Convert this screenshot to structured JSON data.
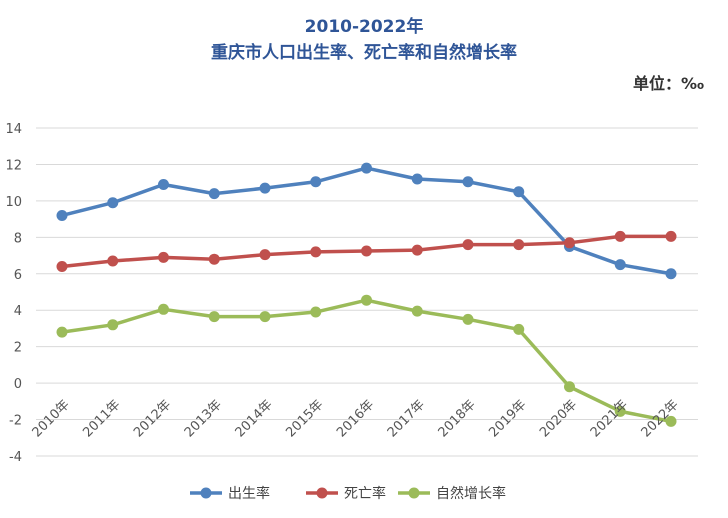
{
  "header": {
    "title_line1": "2010-2022年",
    "title_line2": "重庆市人口出生率、死亡率和自然增长率",
    "unit": "单位：‰"
  },
  "chart_data": {
    "type": "line",
    "title": "2010-2022年 重庆市人口出生率、死亡率和自然增长率",
    "xlabel": "",
    "ylabel": "",
    "unit": "单位：‰",
    "ylim": [
      -4,
      14
    ],
    "yticks": [
      14,
      12,
      10,
      8,
      6,
      4,
      2,
      0,
      -2,
      -4
    ],
    "grid": true,
    "legend_position": "bottom",
    "categories": [
      "2010年",
      "2011年",
      "2012年",
      "2013年",
      "2014年",
      "2015年",
      "2016年",
      "2017年",
      "2018年",
      "2019年",
      "2020年",
      "2021年",
      "2022年"
    ],
    "series": [
      {
        "name": "出生率",
        "color": "#4f81bd",
        "values": [
          9.2,
          9.9,
          10.9,
          10.4,
          10.7,
          11.05,
          11.8,
          11.2,
          11.05,
          10.5,
          7.5,
          6.5,
          6.0
        ]
      },
      {
        "name": "死亡率",
        "color": "#c0504d",
        "values": [
          6.4,
          6.7,
          6.9,
          6.8,
          7.05,
          7.2,
          7.25,
          7.3,
          7.6,
          7.6,
          7.7,
          8.05,
          8.05
        ]
      },
      {
        "name": "自然增长率",
        "color": "#9bbb59",
        "values": [
          2.8,
          3.2,
          4.05,
          3.65,
          3.65,
          3.9,
          4.55,
          3.95,
          3.5,
          2.95,
          -0.2,
          -1.55,
          -2.1
        ]
      }
    ]
  }
}
